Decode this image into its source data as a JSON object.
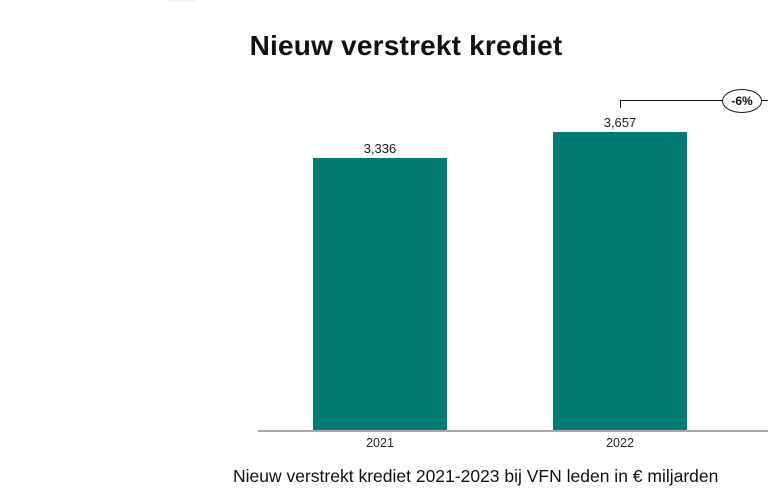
{
  "title": "Nieuw verstrekt krediet",
  "caption": "Nieuw verstrekt krediet 2021-2023 bij VFN leden in € miljarden",
  "annotation": {
    "label": "-6%"
  },
  "colors": {
    "bar": "#047b72",
    "axis_line": "#a8a8a8",
    "text": "#111111"
  },
  "chart_data": {
    "type": "bar",
    "title": "Nieuw verstrekt krediet",
    "categories": [
      "2021",
      "2022"
    ],
    "values": [
      3336,
      3657
    ],
    "value_labels": [
      "3,336",
      "3,657"
    ],
    "xlabel": "",
    "ylabel": "",
    "ylim": [
      0,
      3700
    ],
    "grid": false,
    "legend": false,
    "annotations": [
      {
        "text": "-6%",
        "type": "change-bracket",
        "anchor": "right-of-2022-bar"
      }
    ],
    "caption": "Nieuw verstrekt krediet 2021-2023 bij VFN leden in € miljarden"
  }
}
